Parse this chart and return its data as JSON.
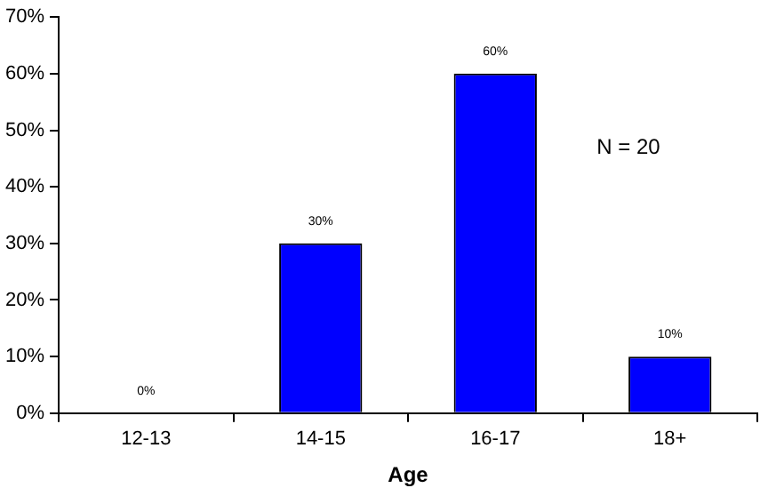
{
  "chart_data": {
    "type": "bar",
    "xlabel": "Age",
    "categories": [
      "12-13",
      "14-15",
      "16-17",
      "18+"
    ],
    "values": [
      0,
      30,
      60,
      10
    ],
    "value_labels": [
      "0%",
      "30%",
      "60%",
      "10%"
    ],
    "color": "#0000ff",
    "ylim": [
      0,
      70
    ],
    "yticks": [
      {
        "value": 0,
        "label": "0%"
      },
      {
        "value": 10,
        "label": "10%"
      },
      {
        "value": 20,
        "label": "20%"
      },
      {
        "value": 30,
        "label": "30%"
      },
      {
        "value": 40,
        "label": "40%"
      },
      {
        "value": 50,
        "label": "50%"
      },
      {
        "value": 60,
        "label": "60%"
      },
      {
        "value": 70,
        "label": "70%"
      }
    ],
    "grid": false,
    "legend": false,
    "annotations": [
      "N = 20"
    ]
  }
}
